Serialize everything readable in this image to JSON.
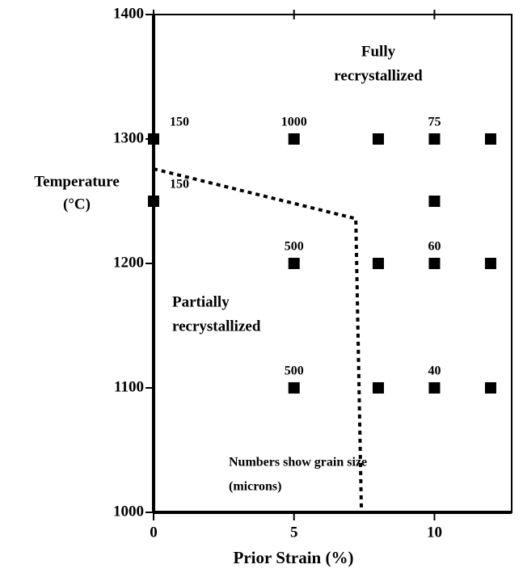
{
  "chart_data": {
    "type": "scatter",
    "xlabel": "Prior Strain (%)",
    "ylabel": [
      "Temperature",
      "(°C)"
    ],
    "xlim": [
      0,
      12.75
    ],
    "ylim": [
      1000,
      1400
    ],
    "xticks": [
      0,
      5,
      10
    ],
    "yticks": [
      1000,
      1100,
      1200,
      1300,
      1400
    ],
    "grid": false,
    "series": [
      {
        "color": "#000000",
        "x": [
          0,
          0,
          5,
          8,
          10,
          12,
          10,
          5,
          8,
          10,
          12,
          5,
          8,
          10,
          12
        ],
        "values": [
          1300,
          1250,
          1300,
          1300,
          1300,
          1300,
          1250,
          1200,
          1200,
          1200,
          1200,
          1100,
          1100,
          1100,
          1100
        ],
        "labels": [
          "150",
          "150",
          "1000",
          null,
          "75",
          null,
          null,
          "500",
          null,
          "60",
          null,
          "500",
          null,
          "40",
          null
        ]
      }
    ],
    "boundary": {
      "x": [
        0,
        7.2,
        7.4
      ],
      "y": [
        1276,
        1236,
        1000
      ]
    },
    "annotations": [
      [
        "Fully",
        "recrystallized"
      ],
      [
        "Partially",
        "recrystallized"
      ],
      [
        "Numbers show grain size",
        "(microns)"
      ]
    ]
  }
}
